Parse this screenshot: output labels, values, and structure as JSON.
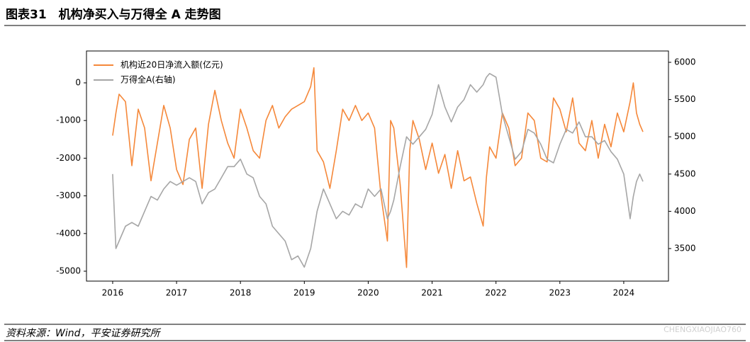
{
  "header": {
    "title": "图表31　机构净买入与万得全 A 走势图"
  },
  "chart_data": {
    "type": "line",
    "x": [
      2016,
      2016.05,
      2016.1,
      2016.2,
      2016.3,
      2016.4,
      2016.5,
      2016.6,
      2016.7,
      2016.8,
      2016.9,
      2017.0,
      2017.1,
      2017.2,
      2017.3,
      2017.4,
      2017.5,
      2017.6,
      2017.7,
      2017.8,
      2017.9,
      2018.0,
      2018.1,
      2018.2,
      2018.3,
      2018.4,
      2018.5,
      2018.6,
      2018.7,
      2018.8,
      2018.9,
      2019.0,
      2019.1,
      2019.15,
      2019.2,
      2019.3,
      2019.4,
      2019.5,
      2019.6,
      2019.7,
      2019.8,
      2019.9,
      2020.0,
      2020.1,
      2020.2,
      2020.3,
      2020.35,
      2020.4,
      2020.5,
      2020.6,
      2020.65,
      2020.7,
      2020.8,
      2020.9,
      2021.0,
      2021.1,
      2021.2,
      2021.3,
      2021.4,
      2021.5,
      2021.6,
      2021.7,
      2021.8,
      2021.85,
      2021.9,
      2022.0,
      2022.1,
      2022.2,
      2022.3,
      2022.4,
      2022.5,
      2022.6,
      2022.7,
      2022.8,
      2022.9,
      2023.0,
      2023.1,
      2023.2,
      2023.3,
      2023.4,
      2023.5,
      2023.6,
      2023.7,
      2023.8,
      2023.9,
      2024.0,
      2024.1,
      2024.15,
      2024.2,
      2024.25,
      2024.3
    ],
    "series": [
      {
        "name": "机构近20日净流入额(亿元)",
        "color": "#f5883a",
        "values": [
          -1400,
          -800,
          -300,
          -500,
          -2200,
          -700,
          -1200,
          -2600,
          -1600,
          -600,
          -1200,
          -2300,
          -2700,
          -1500,
          -1200,
          -2800,
          -1100,
          -200,
          -1000,
          -1600,
          -2000,
          -700,
          -1200,
          -1800,
          -2000,
          -1000,
          -600,
          -1200,
          -900,
          -700,
          -600,
          -500,
          -100,
          400,
          -1800,
          -2100,
          -2800,
          -1800,
          -700,
          -1000,
          -600,
          -1000,
          -800,
          -1200,
          -3000,
          -4200,
          -1000,
          -1200,
          -2700,
          -4900,
          -1800,
          -1000,
          -1500,
          -2300,
          -1600,
          -2400,
          -1900,
          -2800,
          -1800,
          -2600,
          -2500,
          -3200,
          -3800,
          -2500,
          -1700,
          -2000,
          -800,
          -1200,
          -2200,
          -2000,
          -800,
          -1000,
          -2000,
          -2100,
          -400,
          -700,
          -1300,
          -400,
          -1600,
          -1800,
          -1000,
          -2000,
          -1100,
          -1700,
          -800,
          -1300,
          -500,
          0,
          -800,
          -1100,
          -1300
        ]
      },
      {
        "name": "万得全A(右轴)",
        "color": "#a6a6a6",
        "axis": "y2",
        "values": [
          4500,
          3500,
          3600,
          3800,
          3850,
          3800,
          4000,
          4200,
          4150,
          4300,
          4400,
          4350,
          4400,
          4450,
          4400,
          4100,
          4250,
          4300,
          4450,
          4600,
          4600,
          4700,
          4500,
          4450,
          4200,
          4100,
          3800,
          3700,
          3600,
          3350,
          3400,
          3250,
          3500,
          3750,
          4000,
          4300,
          4100,
          3900,
          4000,
          3950,
          4100,
          4050,
          4300,
          4200,
          4300,
          3900,
          4000,
          4150,
          4600,
          5000,
          4950,
          4900,
          5000,
          5100,
          5300,
          5700,
          5400,
          5200,
          5400,
          5500,
          5700,
          5600,
          5700,
          5800,
          5850,
          5800,
          5300,
          5000,
          4700,
          4800,
          5100,
          5050,
          4900,
          4700,
          4650,
          4900,
          5100,
          5050,
          5200,
          5000,
          5000,
          4900,
          4950,
          4800,
          4700,
          4500,
          3900,
          4200,
          4400,
          4500,
          4400
        ]
      }
    ],
    "xlim": [
      2015.59,
      2024.7
    ],
    "xticks": [
      2016,
      2017,
      2018,
      2019,
      2020,
      2021,
      2022,
      2023,
      2024
    ],
    "ylim": [
      -5263,
      846
    ],
    "yticks": [
      -5000,
      -4000,
      -3000,
      -2000,
      -1000,
      0
    ],
    "y2lim": [
      3063,
      6152
    ],
    "y2ticks": [
      3500,
      4000,
      4500,
      5000,
      5500,
      6000
    ],
    "legend": "upper left"
  },
  "footer": {
    "source": "资料来源：Wind，平安证券研究所",
    "watermark": "CHENGXIAOJIAO760"
  }
}
